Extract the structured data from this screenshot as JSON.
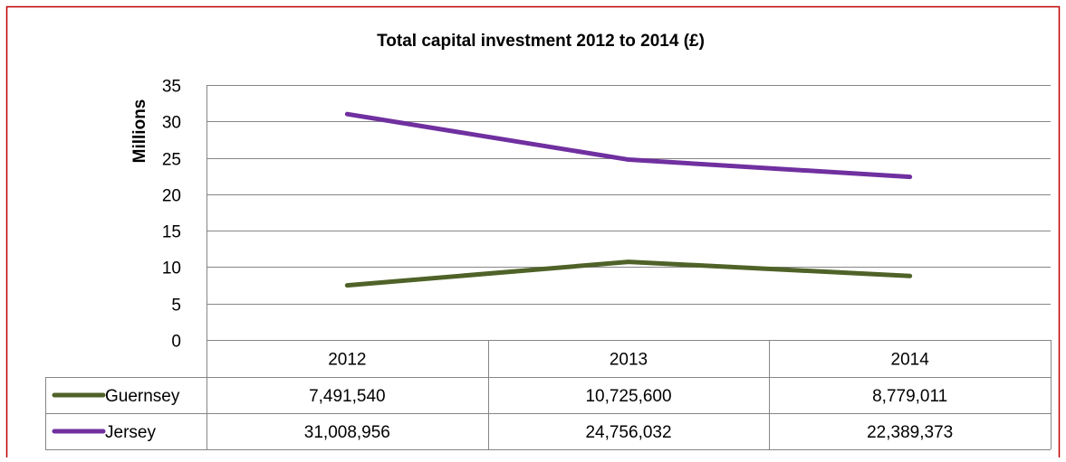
{
  "chart_data": {
    "type": "line",
    "title": "Total capital investment 2012 to 2014 (£)",
    "xlabel": "",
    "ylabel": "Millions",
    "ylim": [
      0,
      35
    ],
    "yticks": [
      "0",
      "5",
      "10",
      "15",
      "20",
      "25",
      "30",
      "35"
    ],
    "ytick_values": [
      0,
      5,
      10,
      15,
      20,
      25,
      30,
      35
    ],
    "categories": [
      "2012",
      "2013",
      "2014"
    ],
    "grid": true,
    "legend": "data-table",
    "series": [
      {
        "name": "Guernsey",
        "color": "#4f6228",
        "values": [
          7.49154,
          10.7256,
          8.779011
        ],
        "labels": [
          "7,491,540",
          "10,725,600",
          "8,779,011"
        ]
      },
      {
        "name": "Jersey",
        "color": "#7030a0",
        "values": [
          31.008956,
          24.756032,
          22.389373
        ],
        "labels": [
          "31,008,956",
          "24,756,032",
          "22,389,373"
        ]
      }
    ]
  },
  "colors": {
    "frame_border": "#c00000",
    "gridline": "#868686",
    "table_border": "#868686"
  }
}
